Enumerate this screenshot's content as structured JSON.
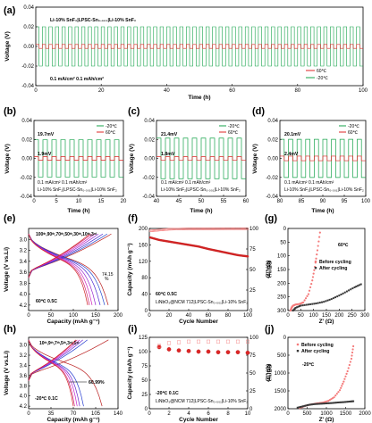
{
  "colors": {
    "green": "#16a34a",
    "red": "#dc2626",
    "blue": "#1d4ed8",
    "pink": "#f47a7a",
    "darkred": "#b91c1c",
    "gray": "#3a3a3a",
    "cyan": "#2aa5a5"
  },
  "panels": {
    "a": {
      "label": "(a)",
      "xlabel": "Time (h)",
      "ylabel": "Voltage (V)",
      "cell": "Li-10% SnF₂|LPSC-Sn₀.₀₀₁|Li-10% SnF₂",
      "cond": "0.1 mA/cm²  0.1 mAh/cm²",
      "legend": [
        "60℃",
        "-20℃"
      ],
      "xticks": [
        "0",
        "20",
        "40",
        "60",
        "80",
        "100"
      ],
      "yticks": [
        "0.04",
        "0.02",
        "0.00",
        "-0.02",
        "-0.04"
      ]
    },
    "b": {
      "label": "(b)",
      "xlabel": "Time (h)",
      "ylabel": "Voltage (V)",
      "ann_high": "19.7mV",
      "ann_low": "1.9mV",
      "cond": "0.1 mA/cm²  0.1 mAh/cm²",
      "cell": "Li-10% SnF₂|LPSC-Sn₀.₀₀₁|Li-10% SnF₂",
      "legend": [
        "-20℃",
        "60℃"
      ],
      "xticks": [
        "0",
        "5",
        "10",
        "15",
        "20"
      ],
      "yticks": [
        "0.04",
        "0.02",
        "0.00",
        "-0.02",
        "-0.04"
      ]
    },
    "c": {
      "label": "(c)",
      "xlabel": "Time (h)",
      "ylabel": "Voltage (V)",
      "ann_high": "21.4mV",
      "ann_low": "1.8mV",
      "cond": "0.1 mA/cm²  0.1 mAh/cm²",
      "cell": "Li-10% SnF₂|LPSC-Sn₀.₀₀₁|Li-10% SnF₂",
      "legend": [
        "-20℃",
        "60℃"
      ],
      "xticks": [
        "40",
        "45",
        "50",
        "55",
        "60"
      ],
      "yticks": [
        "0.04",
        "0.02",
        "0.00",
        "-0.02",
        "-0.04"
      ]
    },
    "d": {
      "label": "(d)",
      "xlabel": "Time (h)",
      "ylabel": "Voltage (V)",
      "ann_high": "20.1mV",
      "ann_low": "2.4mV",
      "cond": "0.1 mA/cm²  0.1 mAh/cm²",
      "cell": "Li-10% SnF₂|LPSC-Sn₀.₀₀₁|Li-10% SnF₂",
      "legend": [
        "-20℃",
        "60℃"
      ],
      "xticks": [
        "80",
        "85",
        "90",
        "95",
        "100"
      ],
      "yticks": [
        "0.04",
        "0.02",
        "0.00",
        "-0.02",
        "-0.04"
      ]
    },
    "e": {
      "label": "(e)",
      "xlabel": "Capacity (mAh g⁻¹)",
      "ylabel": "Voltage (V vs.Li)",
      "cycles": "100ᵗʰ,90ᵗʰ,70ᵗʰ,50ᵗʰ,30ᵗʰ,10ᵗʰ,3ʳᵈ",
      "ann": "60℃ 0.5C",
      "ret": "74.15",
      "ret2": "%",
      "xticks": [
        "0",
        "50",
        "100",
        "150",
        "200"
      ],
      "yticks": [
        "3.0",
        "3.2",
        "3.4",
        "3.6",
        "3.8",
        "4.0",
        "4.2"
      ]
    },
    "f": {
      "label": "(f)",
      "xlabel": "Cycle Number",
      "ylabel": "Capacity (mAh g⁻¹)",
      "y2label": "CE(%)",
      "ann": "60℃ 0.5C",
      "cell": "LiNbO₃@NCM 712|LPSC-Sn₀.₀₀₁|Li-10% SnF₂",
      "xticks": [
        "0",
        "20",
        "40",
        "60",
        "80",
        "100"
      ],
      "yticks": [
        "0",
        "40",
        "80",
        "120",
        "160",
        "200"
      ],
      "y2ticks": [
        "0",
        "25",
        "50",
        "75",
        "100"
      ]
    },
    "g": {
      "label": "(g)",
      "xlabel": "Z' (Ω)",
      "ylabel": "-Z'' (Ω)",
      "temp": "60℃",
      "legend": [
        "Before cycling",
        "After cycling"
      ],
      "xticks": [
        "0",
        "50",
        "100",
        "150",
        "200",
        "250",
        "300"
      ],
      "yticks": [
        "0",
        "50",
        "100",
        "150",
        "200",
        "250",
        "300"
      ]
    },
    "h": {
      "label": "(h)",
      "xlabel": "Capacity (mAh g⁻¹)",
      "ylabel": "Voltage (V vs.Li)",
      "cycles": "10ᵗʰ,9ᵗʰ,7ᵗʰ,5ᵗʰ,3ʳᵈ,1ˢᵗ",
      "ann": "-20℃ 0.1C",
      "ret": "60.99%",
      "xticks": [
        "0",
        "35",
        "70",
        "105",
        "140"
      ],
      "yticks": [
        "3.0",
        "3.2",
        "3.4",
        "3.6",
        "3.8",
        "4.0",
        "4.2"
      ]
    },
    "i": {
      "label": "(i)",
      "xlabel": "Cycle Number",
      "ylabel": "Capacity (mAh g⁻¹)",
      "y2label": "CE(%)",
      "ann": "-20℃ 0.1C",
      "cell": "LiNbO₃@NCM 712|LPSC-Sn₀.₀₀₁|Li-10% SnF₂",
      "xticks": [
        "0",
        "2",
        "4",
        "6",
        "8",
        "10"
      ],
      "yticks": [
        "0",
        "25",
        "50",
        "75",
        "100",
        "125"
      ],
      "y2ticks": [
        "0",
        "25",
        "50",
        "75",
        "100"
      ]
    },
    "j": {
      "label": "(j)",
      "xlabel": "Z' (Ω)",
      "ylabel": "-Z'' (Ω)",
      "temp": "-20℃",
      "legend": [
        "Before cycling",
        "After cycling"
      ],
      "xticks": [
        "0",
        "500",
        "1000",
        "1500",
        "2000"
      ],
      "yticks": [
        "0",
        "500",
        "1000",
        "1500",
        "2000"
      ]
    }
  },
  "chart_data": [
    {
      "panel": "a",
      "type": "line",
      "xlim": [
        0,
        100
      ],
      "ylim": [
        -0.04,
        0.04
      ],
      "series": [
        {
          "name": "60℃",
          "amplitude": 0.002
        },
        {
          "name": "-20℃",
          "amplitude": 0.02
        }
      ],
      "period_h": 2
    },
    {
      "panel": "b",
      "type": "line",
      "xlim": [
        0,
        20
      ],
      "ylim": [
        -0.04,
        0.04
      ],
      "series": [
        {
          "name": "-20℃",
          "amplitude": 0.0197
        },
        {
          "name": "60℃",
          "amplitude": 0.0019
        }
      ],
      "period_h": 2
    },
    {
      "panel": "c",
      "type": "line",
      "xlim": [
        40,
        60
      ],
      "ylim": [
        -0.04,
        0.04
      ],
      "series": [
        {
          "name": "-20℃",
          "amplitude": 0.0214
        },
        {
          "name": "60℃",
          "amplitude": 0.0018
        }
      ],
      "period_h": 2
    },
    {
      "panel": "d",
      "type": "line",
      "xlim": [
        80,
        100
      ],
      "ylim": [
        -0.04,
        0.04
      ],
      "series": [
        {
          "name": "-20℃",
          "amplitude": 0.0201
        },
        {
          "name": "60℃",
          "amplitude": 0.0024
        }
      ],
      "period_h": 2
    },
    {
      "panel": "e",
      "type": "line",
      "xlim": [
        0,
        200
      ],
      "ylim": [
        2.9,
        4.4
      ],
      "cycles": [
        3,
        10,
        30,
        50,
        70,
        90,
        100
      ],
      "discharge_end": [
        178,
        170,
        160,
        150,
        142,
        136,
        132
      ],
      "charge_end": [
        185,
        176,
        166,
        156,
        148,
        141,
        137
      ]
    },
    {
      "panel": "f",
      "type": "scatter",
      "xlim": [
        0,
        100
      ],
      "ylim": [
        0,
        200
      ],
      "y2lim": [
        0,
        100
      ],
      "capacity": {
        "x": [
          1,
          10,
          20,
          30,
          40,
          50,
          60,
          70,
          80,
          90,
          100
        ],
        "y": [
          178,
          172,
          168,
          164,
          160,
          156,
          150,
          145,
          140,
          135,
          132
        ]
      },
      "ce": {
        "x": [
          1,
          20,
          40,
          60,
          80,
          100
        ],
        "y": [
          97,
          99,
          99.5,
          99.5,
          99.6,
          99.6
        ]
      }
    },
    {
      "panel": "g",
      "type": "scatter",
      "xlim": [
        0,
        300
      ],
      "ylim": [
        0,
        300
      ],
      "series": [
        {
          "name": "Before cycling",
          "x": [
            10,
            12,
            15,
            20,
            30,
            45,
            60,
            80,
            95,
            105,
            115,
            125
          ],
          "y": [
            0,
            5,
            12,
            18,
            22,
            24,
            30,
            60,
            110,
            160,
            220,
            285
          ]
        },
        {
          "name": "After cycling",
          "x": [
            20,
            30,
            50,
            80,
            110,
            140,
            170,
            200,
            230,
            260,
            285
          ],
          "y": [
            0,
            10,
            18,
            22,
            26,
            32,
            42,
            55,
            70,
            85,
            96
          ]
        }
      ]
    },
    {
      "panel": "h",
      "type": "line",
      "xlim": [
        0,
        140
      ],
      "ylim": [
        2.95,
        4.35
      ],
      "cycles": [
        1,
        3,
        5,
        7,
        9,
        10
      ],
      "discharge_end": [
        115,
        86,
        80,
        76,
        72,
        70
      ],
      "charge_end": [
        125,
        92,
        85,
        80,
        76,
        74
      ]
    },
    {
      "panel": "i",
      "type": "scatter",
      "xlim": [
        0,
        10
      ],
      "ylim": [
        0,
        125
      ],
      "y2lim": [
        0,
        100
      ],
      "capacity": {
        "x": [
          1,
          2,
          3,
          4,
          5,
          6,
          7,
          8,
          9,
          10
        ],
        "y": [
          108,
          104,
          102,
          101,
          100,
          100,
          99,
          99,
          99,
          98
        ]
      },
      "ce": {
        "x": [
          1,
          2,
          3,
          4,
          5,
          6,
          7,
          8,
          9,
          10
        ],
        "y": [
          88,
          92,
          93,
          94,
          94,
          94,
          94,
          94,
          94,
          94
        ]
      }
    },
    {
      "panel": "j",
      "type": "scatter",
      "xlim": [
        0,
        2000
      ],
      "ylim": [
        0,
        2000
      ],
      "series": [
        {
          "name": "Before cycling",
          "x": [
            300,
            450,
            600,
            750,
            900,
            1050,
            1200,
            1350,
            1450,
            1550,
            1650,
            1700
          ],
          "y": [
            20,
            80,
            120,
            150,
            170,
            220,
            320,
            520,
            760,
            1050,
            1400,
            1750
          ]
        },
        {
          "name": "After cycling",
          "x": [
            250,
            400,
            550,
            700,
            850,
            1000,
            1150,
            1300,
            1450,
            1600,
            1700
          ],
          "y": [
            30,
            70,
            110,
            130,
            140,
            150,
            160,
            175,
            185,
            200,
            210
          ]
        }
      ]
    }
  ]
}
